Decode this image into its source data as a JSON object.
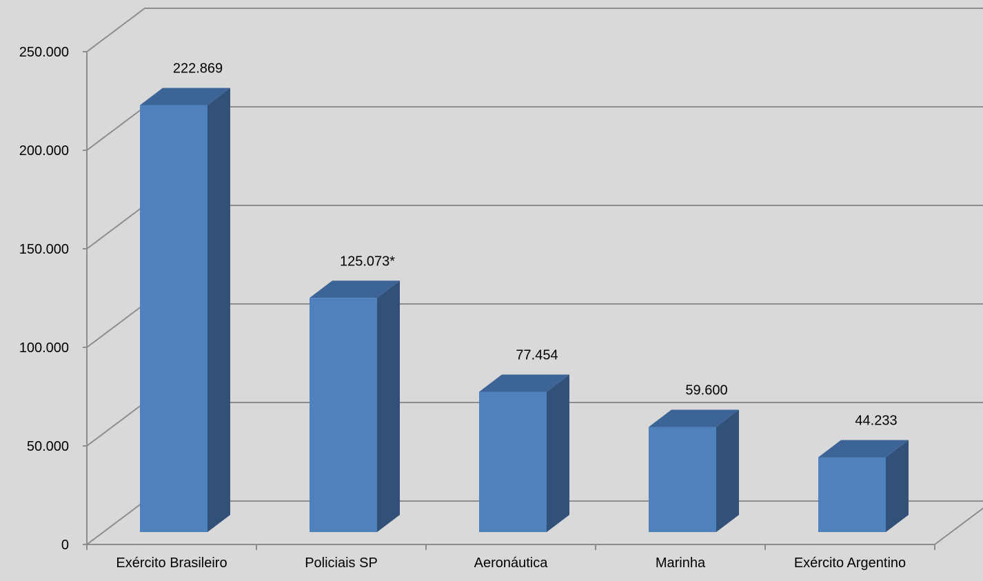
{
  "chart_data": {
    "type": "bar",
    "categories": [
      "Exército Brasileiro",
      "Policiais SP",
      "Aeronáutica",
      "Marinha",
      "Exército Argentino"
    ],
    "values": [
      222869,
      125073,
      77454,
      59600,
      44233
    ],
    "data_labels": [
      "222.869",
      "125.073*",
      "77.454",
      "59.600",
      "44.233"
    ],
    "y_ticks": [
      0,
      50000,
      100000,
      150000,
      200000,
      250000
    ],
    "y_tick_labels": [
      "0",
      "50.000",
      "100.000",
      "150.000",
      "200.000",
      "250.000"
    ],
    "ylim": [
      0,
      250000
    ],
    "title": "",
    "xlabel": "",
    "ylabel": "",
    "three_d": true,
    "grid": true,
    "legend": "none",
    "colors": {
      "background": "#d9d9d9",
      "bar_front": "#4f81bd",
      "bar_side": "#315179",
      "bar_top": "#3d6497",
      "gridline": "#8c8c8c",
      "axis": "#8c8c8c"
    }
  }
}
